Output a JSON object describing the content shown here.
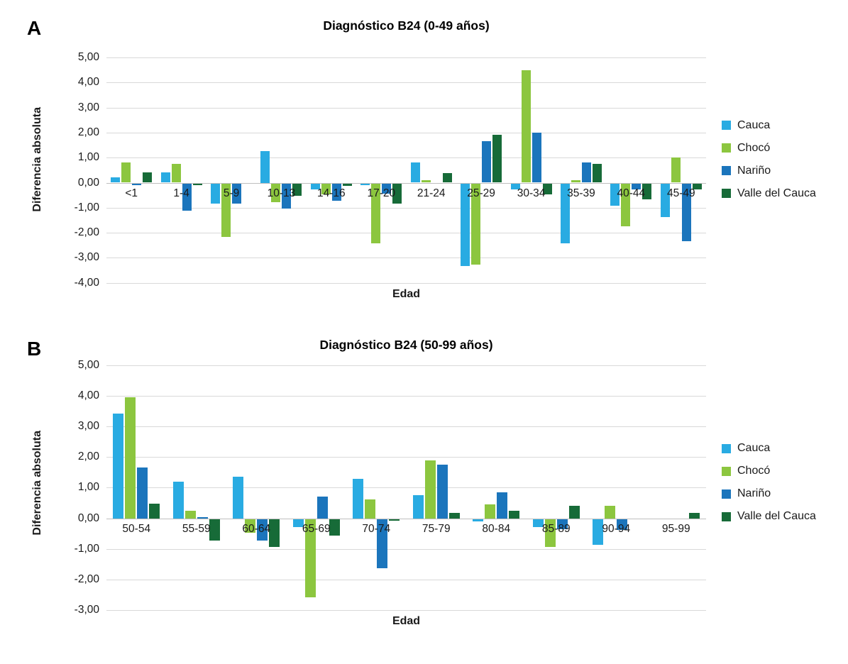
{
  "page": {
    "background": "#ffffff"
  },
  "chart_data": [
    {
      "type": "bar",
      "panel_label": "A",
      "title": "Diagnóstico B24 (0-49 años)",
      "xlabel": "Edad",
      "ylabel": "Diferencia absoluta",
      "ylim": [
        -4,
        5
      ],
      "ytick_step": 1,
      "ytick_labels": [
        "5,00",
        "4,00",
        "3,00",
        "2,00",
        "1,00",
        "0,00",
        "-1,00",
        "-2,00",
        "-3,00",
        "-4,00"
      ],
      "grid": true,
      "legend_position": "right",
      "categories": [
        "<1",
        "1-4",
        "5-9",
        "10-13",
        "14-16",
        "17-20",
        "21-24",
        "25-29",
        "30-34",
        "35-39",
        "40-44",
        "45-49"
      ],
      "series": [
        {
          "name": "Cauca",
          "color": "#29ABE2",
          "values": [
            0.2,
            0.4,
            -0.8,
            1.25,
            -0.25,
            -0.07,
            0.8,
            -3.3,
            -0.25,
            -2.4,
            -0.9,
            -1.35
          ]
        },
        {
          "name": "Chocó",
          "color": "#8CC63F",
          "values": [
            0.8,
            0.75,
            -2.15,
            -0.75,
            -0.45,
            -2.4,
            0.1,
            -3.25,
            4.5,
            0.1,
            -1.7,
            1.0
          ]
        },
        {
          "name": "Nariño",
          "color": "#1B75BC",
          "values": [
            -0.07,
            -1.1,
            -0.8,
            -1.0,
            -0.68,
            -0.4,
            0,
            1.65,
            2.0,
            0.8,
            -0.25,
            -2.3
          ]
        },
        {
          "name": "Valle del Cauca",
          "color": "#176B38",
          "values": [
            0.4,
            -0.06,
            0,
            -0.5,
            -0.1,
            -0.8,
            0.38,
            1.9,
            -0.45,
            0.75,
            -0.65,
            -0.25
          ]
        }
      ]
    },
    {
      "type": "bar",
      "panel_label": "B",
      "title": "Diagnóstico B24 (50-99 años)",
      "xlabel": "Edad",
      "ylabel": "Diferencia absoluta",
      "ylim": [
        -3,
        5
      ],
      "ytick_step": 1,
      "ytick_labels": [
        "5,00",
        "4,00",
        "3,00",
        "2,00",
        "1,00",
        "0,00",
        "-1,00",
        "-2,00",
        "-3,00"
      ],
      "grid": true,
      "legend_position": "right",
      "categories": [
        "50-54",
        "55-59",
        "60-64",
        "65-69",
        "70-74",
        "75-79",
        "80-84",
        "85-89",
        "90-94",
        "95-99"
      ],
      "series": [
        {
          "name": "Cauca",
          "color": "#29ABE2",
          "values": [
            3.42,
            1.2,
            1.35,
            -0.27,
            1.28,
            0.75,
            -0.08,
            -0.27,
            -0.85,
            0
          ]
        },
        {
          "name": "Chocó",
          "color": "#8CC63F",
          "values": [
            3.95,
            0.25,
            -0.45,
            -2.55,
            0.62,
            1.9,
            0.45,
            -0.9,
            0.4,
            0
          ]
        },
        {
          "name": "Nariño",
          "color": "#1B75BC",
          "values": [
            1.65,
            0.05,
            -0.7,
            0.7,
            -1.6,
            1.75,
            0.85,
            -0.32,
            -0.35,
            0
          ]
        },
        {
          "name": "Valle del Cauca",
          "color": "#176B38",
          "values": [
            0.48,
            -0.7,
            -0.9,
            -0.55,
            -0.05,
            0.18,
            0.25,
            0.4,
            0,
            0.18
          ]
        }
      ]
    }
  ]
}
